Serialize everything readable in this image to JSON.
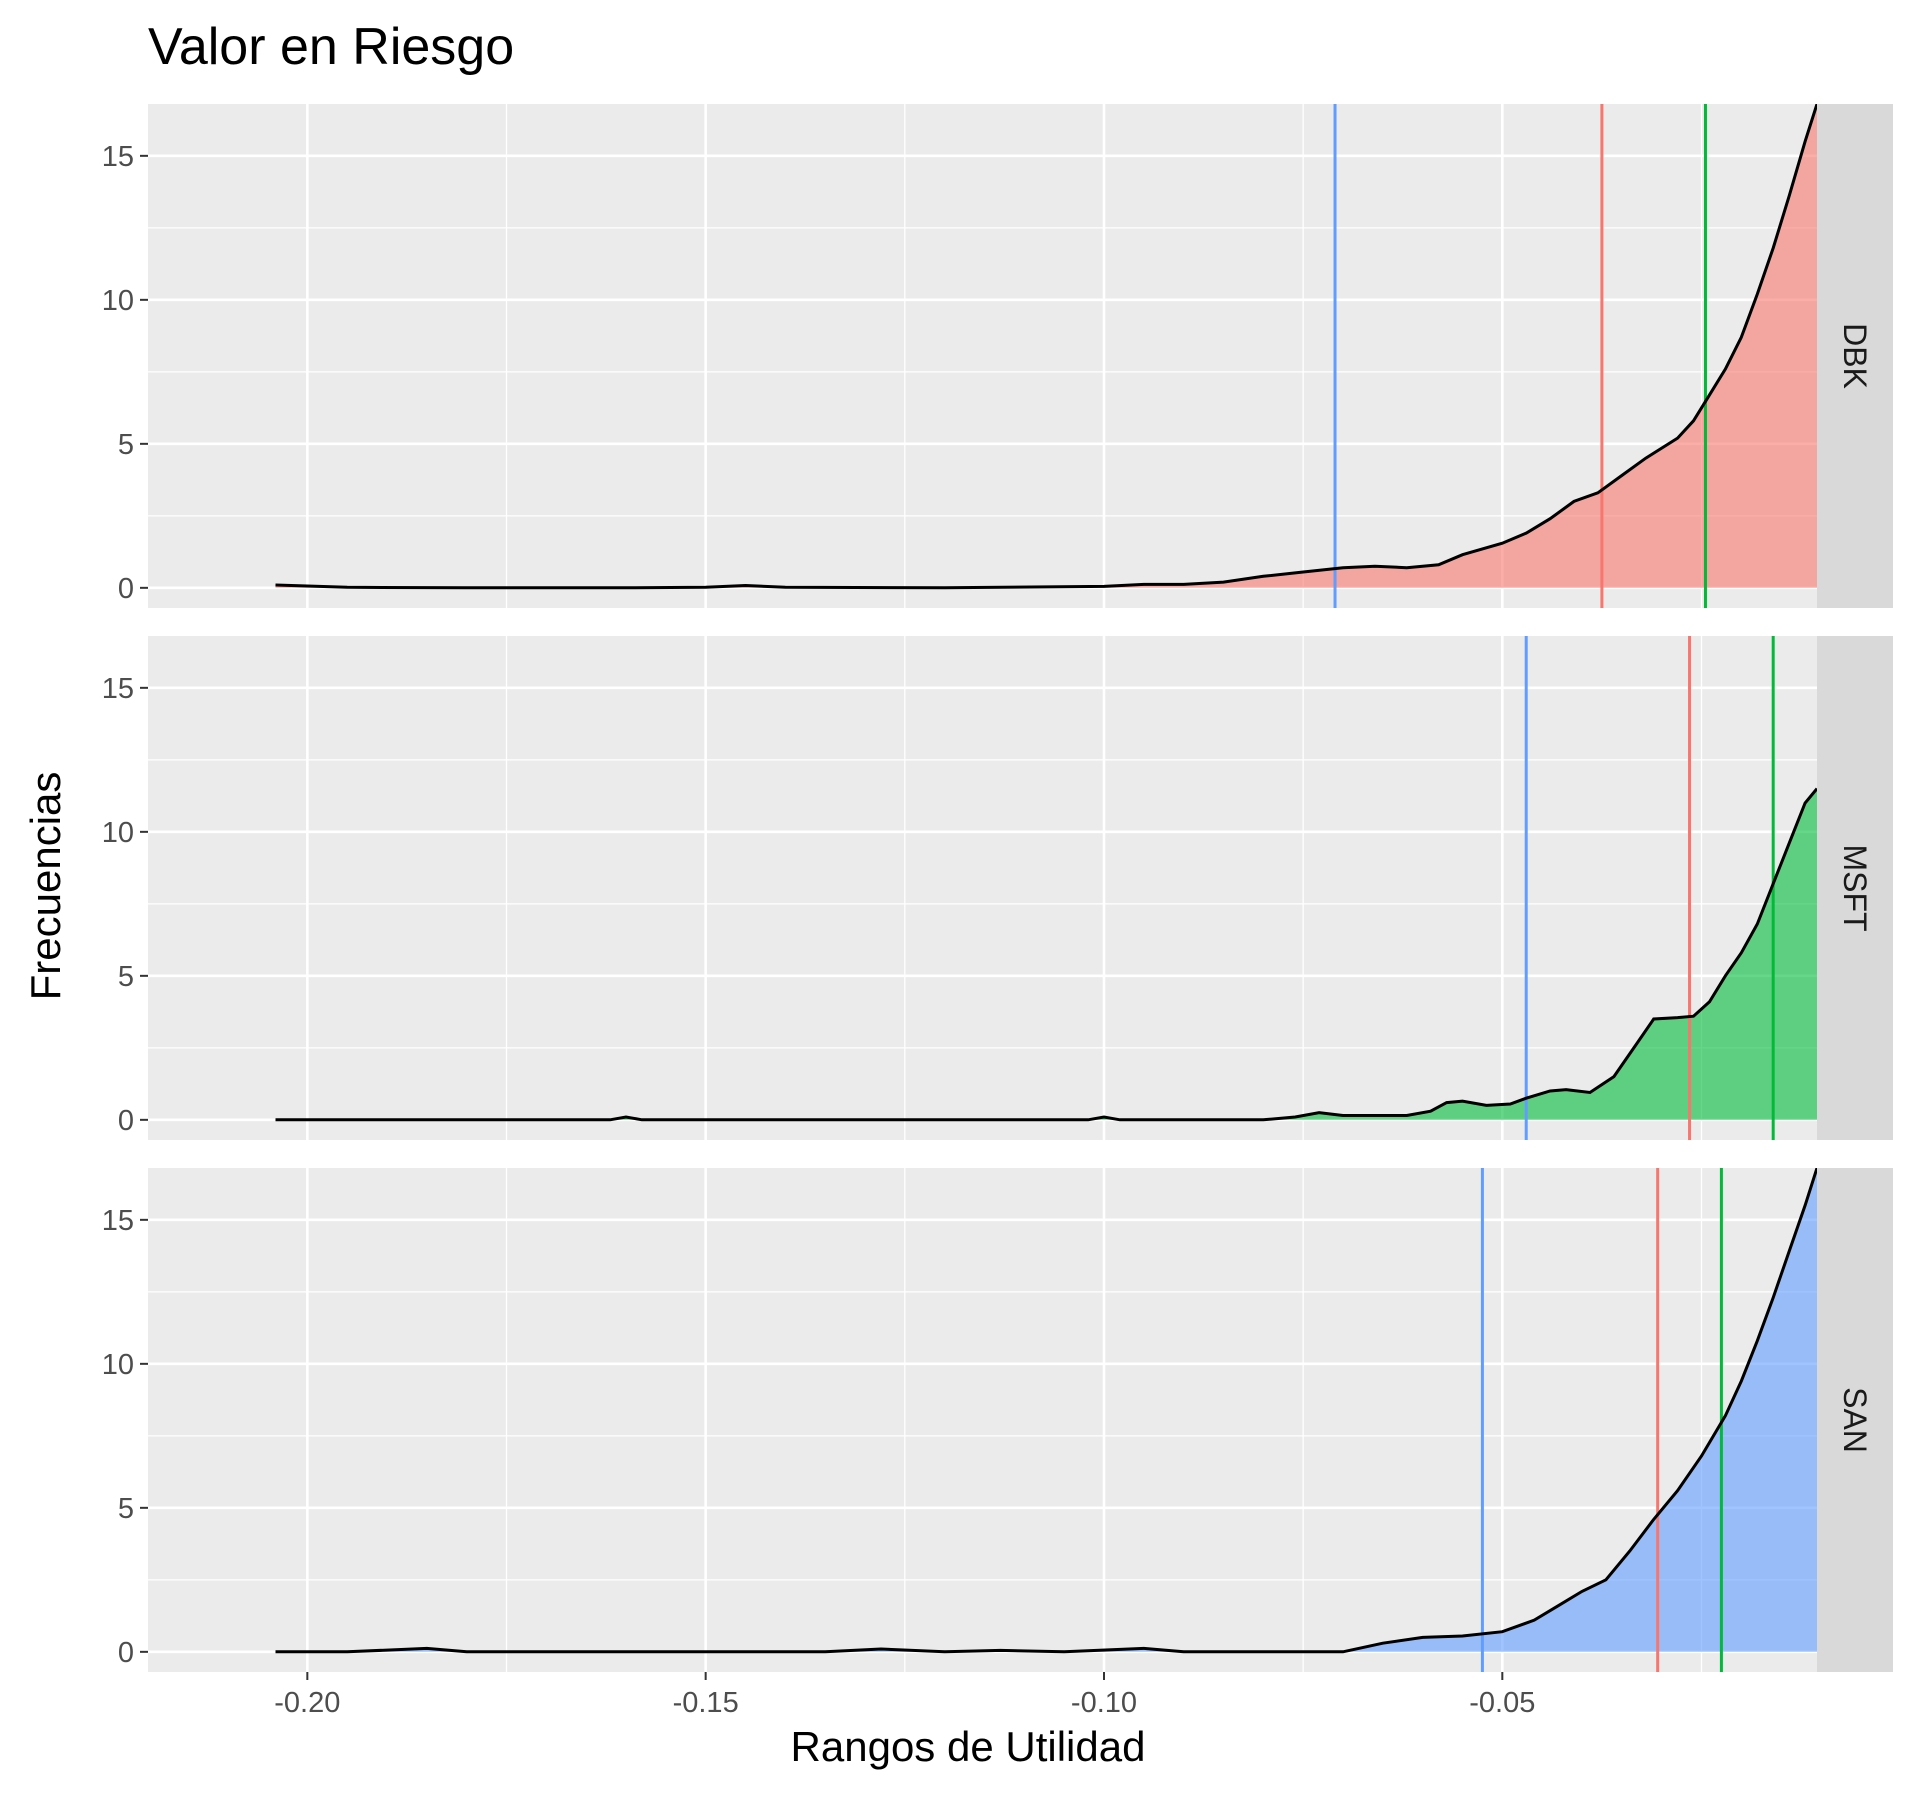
{
  "chart_data": {
    "type": "area",
    "title": "Valor en Riesgo",
    "xlabel": "Rangos de Utilidad",
    "ylabel": "Frecuencias",
    "xlim": [
      -0.22,
      -0.0105
    ],
    "ylim": [
      -0.7,
      16.8
    ],
    "x_ticks": [
      -0.2,
      -0.15,
      -0.1,
      -0.05
    ],
    "x_tick_labels": [
      "-0.20",
      "-0.15",
      "-0.10",
      "-0.05"
    ],
    "y_ticks": [
      0,
      5,
      10,
      15
    ],
    "y_tick_labels": [
      "0",
      "5",
      "10",
      "15"
    ],
    "grid": true,
    "legend": "none",
    "vline_colors": [
      "#619CFF",
      "#F8766D",
      "#00BA38"
    ],
    "panels": [
      {
        "name": "DBK",
        "fill": "#F8766D",
        "vlines": [
          -0.071,
          -0.0375,
          -0.0245
        ],
        "x": [
          -0.204,
          -0.195,
          -0.18,
          -0.16,
          -0.15,
          -0.145,
          -0.14,
          -0.12,
          -0.1,
          -0.095,
          -0.09,
          -0.085,
          -0.08,
          -0.075,
          -0.07,
          -0.066,
          -0.062,
          -0.058,
          -0.055,
          -0.05,
          -0.047,
          -0.044,
          -0.041,
          -0.038,
          -0.035,
          -0.032,
          -0.028,
          -0.026,
          -0.024,
          -0.022,
          -0.02,
          -0.018,
          -0.016,
          -0.014,
          -0.012,
          -0.0105
        ],
        "y": [
          0.1,
          0.02,
          0,
          0,
          0.02,
          0.08,
          0.02,
          0,
          0.05,
          0.12,
          0.12,
          0.2,
          0.4,
          0.55,
          0.7,
          0.75,
          0.7,
          0.8,
          1.15,
          1.55,
          1.9,
          2.4,
          3.0,
          3.3,
          3.9,
          4.5,
          5.2,
          5.8,
          6.7,
          7.6,
          8.7,
          10.2,
          11.8,
          13.6,
          15.5,
          16.8
        ]
      },
      {
        "name": "MSFT",
        "fill": "#00BA38",
        "vlines": [
          -0.047,
          -0.0265,
          -0.016
        ],
        "x": [
          -0.204,
          -0.17,
          -0.162,
          -0.16,
          -0.158,
          -0.15,
          -0.12,
          -0.102,
          -0.1,
          -0.098,
          -0.08,
          -0.076,
          -0.073,
          -0.07,
          -0.065,
          -0.062,
          -0.059,
          -0.057,
          -0.055,
          -0.052,
          -0.049,
          -0.047,
          -0.044,
          -0.042,
          -0.039,
          -0.036,
          -0.033,
          -0.031,
          -0.028,
          -0.026,
          -0.024,
          -0.022,
          -0.02,
          -0.018,
          -0.016,
          -0.014,
          -0.012,
          -0.0105
        ],
        "y": [
          0,
          0,
          0,
          0.1,
          0,
          0,
          0,
          0,
          0.1,
          0,
          0,
          0.1,
          0.25,
          0.15,
          0.15,
          0.15,
          0.3,
          0.6,
          0.65,
          0.5,
          0.55,
          0.75,
          1.0,
          1.05,
          0.95,
          1.5,
          2.7,
          3.5,
          3.55,
          3.6,
          4.1,
          5.0,
          5.8,
          6.8,
          8.2,
          9.6,
          11.0,
          11.5
        ]
      },
      {
        "name": "SAN",
        "fill": "#619CFF",
        "vlines": [
          -0.0525,
          -0.0305,
          -0.0225
        ],
        "x": [
          -0.204,
          -0.195,
          -0.185,
          -0.18,
          -0.17,
          -0.15,
          -0.135,
          -0.128,
          -0.12,
          -0.113,
          -0.105,
          -0.095,
          -0.09,
          -0.08,
          -0.07,
          -0.065,
          -0.06,
          -0.055,
          -0.05,
          -0.046,
          -0.043,
          -0.04,
          -0.037,
          -0.034,
          -0.031,
          -0.028,
          -0.025,
          -0.022,
          -0.02,
          -0.018,
          -0.016,
          -0.014,
          -0.012,
          -0.0105
        ],
        "y": [
          0,
          0,
          0.12,
          0,
          0,
          0,
          0,
          0.1,
          0,
          0.05,
          0,
          0.12,
          0,
          0,
          0,
          0.3,
          0.5,
          0.55,
          0.7,
          1.1,
          1.6,
          2.1,
          2.5,
          3.5,
          4.6,
          5.6,
          6.8,
          8.2,
          9.4,
          10.8,
          12.3,
          13.9,
          15.5,
          16.8
        ]
      }
    ]
  }
}
